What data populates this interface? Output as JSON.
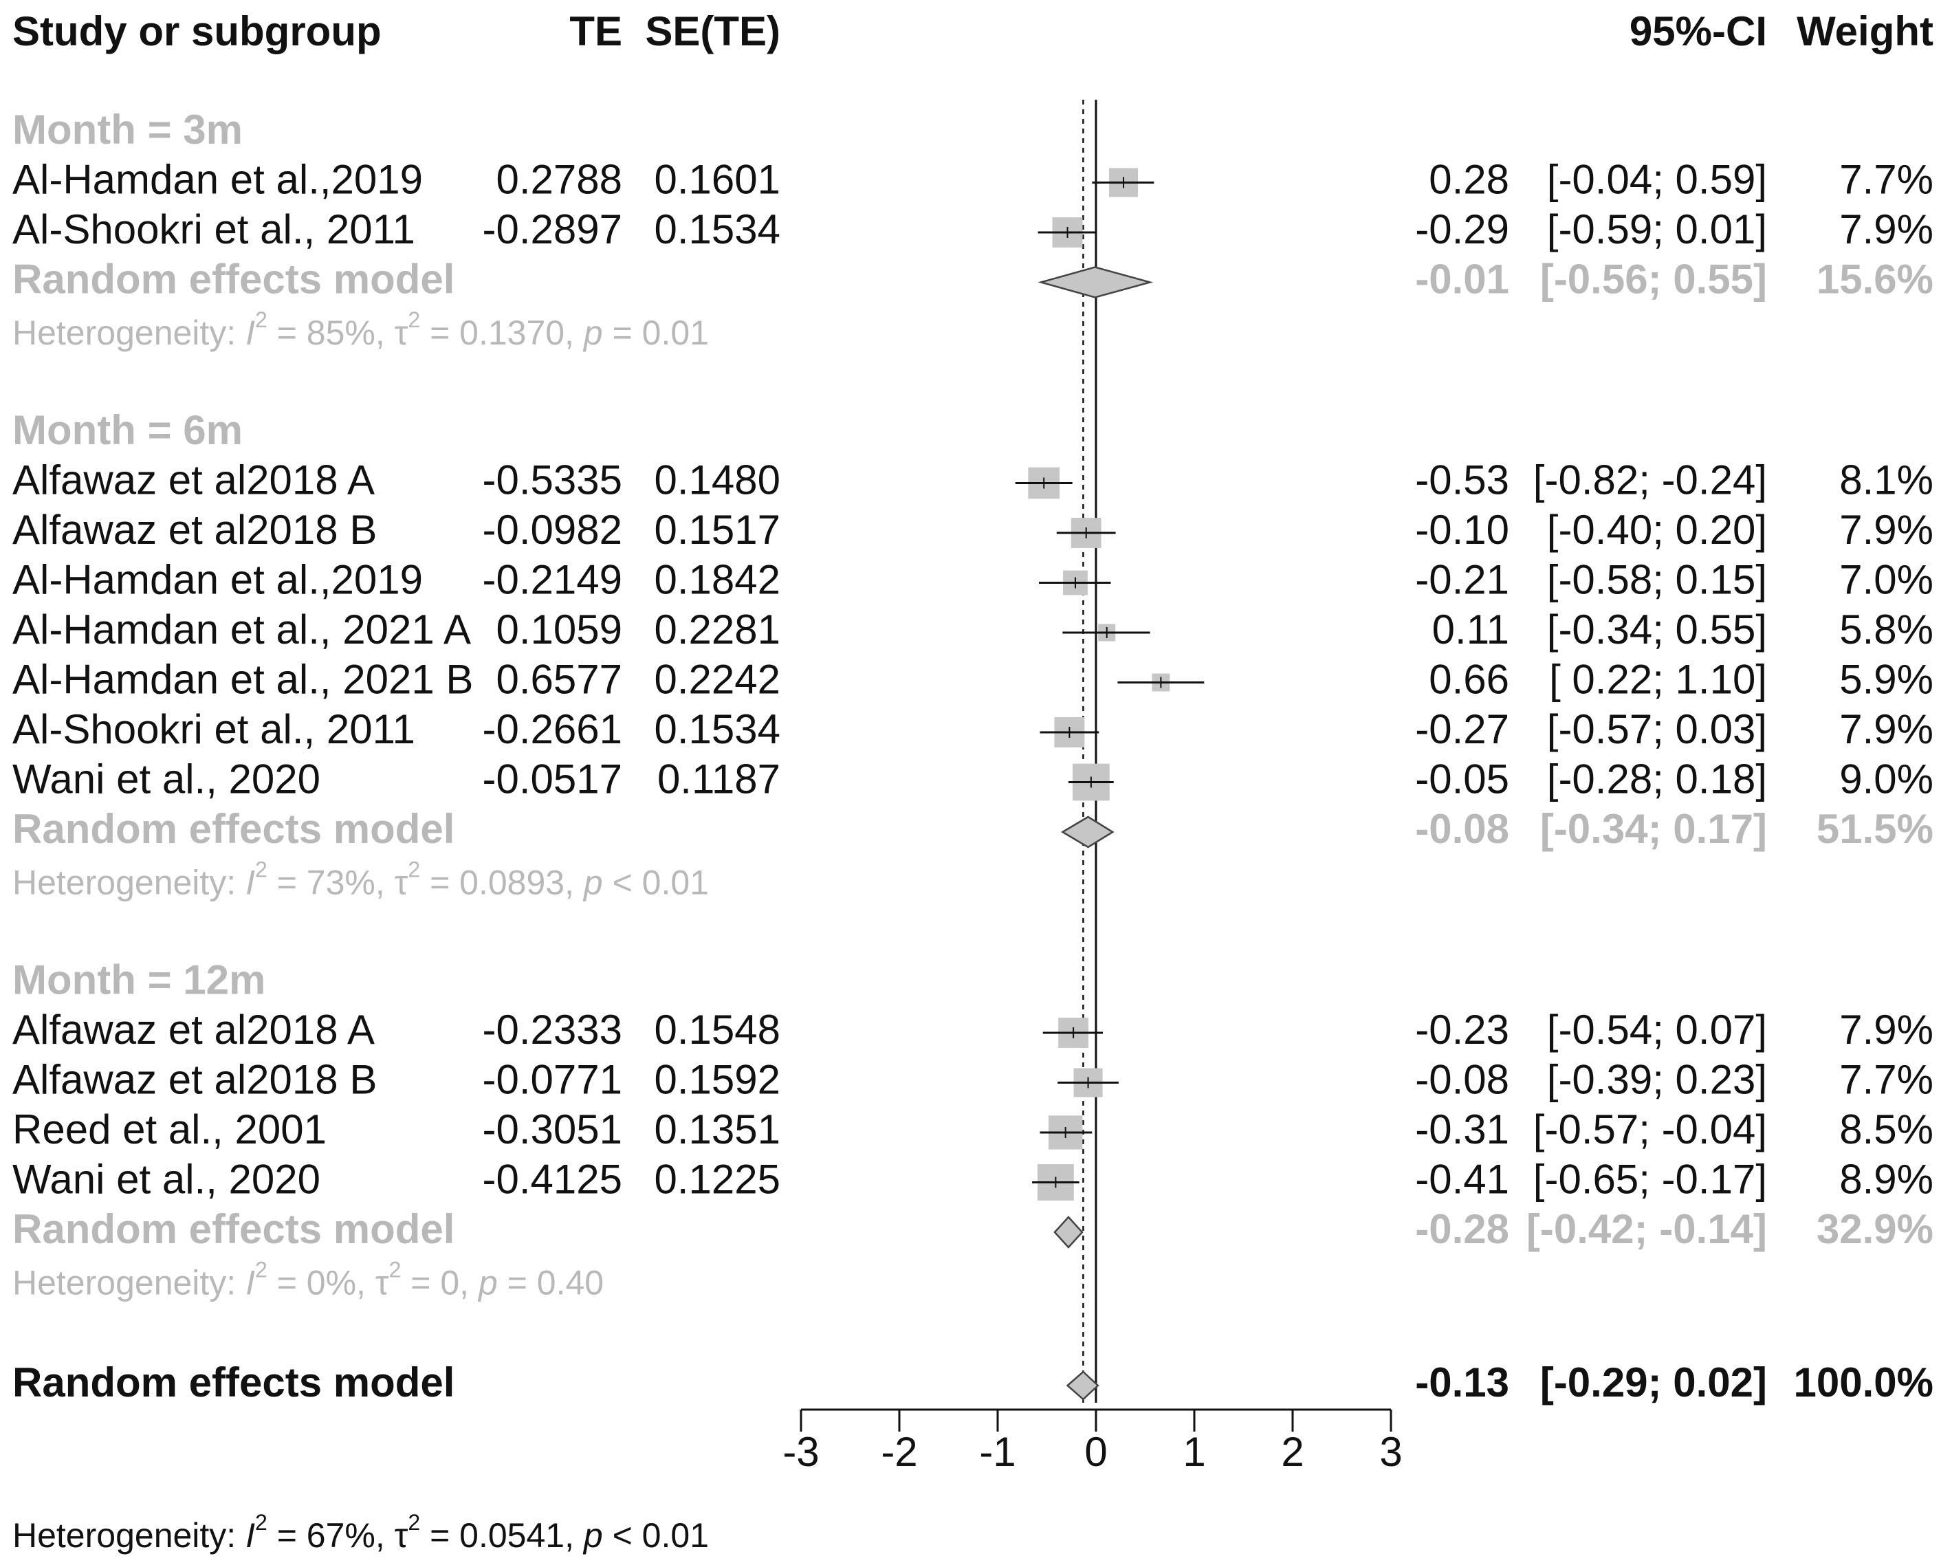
{
  "chart_data": {
    "type": "forest",
    "headers": {
      "study": "Study or subgroup",
      "te": "TE",
      "se": "SE(TE)",
      "ci": "95%-CI",
      "weight": "Weight"
    },
    "xlim": [
      -3,
      3
    ],
    "x_ticks": [
      "-3",
      "-2",
      "-1",
      "0",
      "1",
      "2",
      "3"
    ],
    "pooled_estimate": -0.13,
    "subgroups": [
      {
        "label": "Month = 3m",
        "studies": [
          {
            "name": "Al-Hamdan et al.,2019",
            "te": "0.2788",
            "se": "0.1601",
            "est": 0.28,
            "lo": -0.04,
            "hi": 0.59,
            "wval": 7.7,
            "estr": "0.28",
            "ci": "[-0.04;  0.59]",
            "weight": "7.7%"
          },
          {
            "name": "Al-Shookri et al., 2011",
            "te": "-0.2897",
            "se": "0.1534",
            "est": -0.29,
            "lo": -0.59,
            "hi": 0.01,
            "wval": 7.9,
            "estr": "-0.29",
            "ci": "[-0.59;  0.01]",
            "weight": "7.9%"
          }
        ],
        "model": {
          "label": "Random effects model",
          "est": -0.01,
          "lo": -0.56,
          "hi": 0.55,
          "estr": "-0.01",
          "ci": "[-0.56;  0.55]",
          "weight": "15.6%"
        },
        "het": {
          "prefix": "Heterogeneity: ",
          "i": "I",
          "i2": "2",
          "i2eq": " = 85%, τ",
          "t2": "2",
          "t2eq": " = 0.1370, ",
          "p": "p",
          "peq": " = 0.01"
        }
      },
      {
        "label": "Month = 6m",
        "studies": [
          {
            "name": "Alfawaz et al2018 A",
            "te": "-0.5335",
            "se": "0.1480",
            "est": -0.53,
            "lo": -0.82,
            "hi": -0.24,
            "wval": 8.1,
            "estr": "-0.53",
            "ci": "[-0.82; -0.24]",
            "weight": "8.1%"
          },
          {
            "name": "Alfawaz et al2018 B",
            "te": "-0.0982",
            "se": "0.1517",
            "est": -0.1,
            "lo": -0.4,
            "hi": 0.2,
            "wval": 7.9,
            "estr": "-0.10",
            "ci": "[-0.40;  0.20]",
            "weight": "7.9%"
          },
          {
            "name": "Al-Hamdan et al.,2019",
            "te": "-0.2149",
            "se": "0.1842",
            "est": -0.21,
            "lo": -0.58,
            "hi": 0.15,
            "wval": 7.0,
            "estr": "-0.21",
            "ci": "[-0.58;  0.15]",
            "weight": "7.0%"
          },
          {
            "name": "Al-Hamdan et al., 2021 A",
            "te": "0.1059",
            "se": "0.2281",
            "est": 0.11,
            "lo": -0.34,
            "hi": 0.55,
            "wval": 5.8,
            "estr": "0.11",
            "ci": "[-0.34;  0.55]",
            "weight": "5.8%"
          },
          {
            "name": "Al-Hamdan et al., 2021 B",
            "te": "0.6577",
            "se": "0.2242",
            "est": 0.66,
            "lo": 0.22,
            "hi": 1.1,
            "wval": 5.9,
            "estr": "0.66",
            "ci": "[ 0.22;  1.10]",
            "weight": "5.9%"
          },
          {
            "name": "Al-Shookri et al., 2011",
            "te": "-0.2661",
            "se": "0.1534",
            "est": -0.27,
            "lo": -0.57,
            "hi": 0.03,
            "wval": 7.9,
            "estr": "-0.27",
            "ci": "[-0.57;  0.03]",
            "weight": "7.9%"
          },
          {
            "name": "Wani et al., 2020",
            "te": "-0.0517",
            "se": "0.1187",
            "est": -0.05,
            "lo": -0.28,
            "hi": 0.18,
            "wval": 9.0,
            "estr": "-0.05",
            "ci": "[-0.28;  0.18]",
            "weight": "9.0%"
          }
        ],
        "model": {
          "label": "Random effects model",
          "est": -0.08,
          "lo": -0.34,
          "hi": 0.17,
          "estr": "-0.08",
          "ci": "[-0.34;  0.17]",
          "weight": "51.5%"
        },
        "het": {
          "prefix": "Heterogeneity: ",
          "i": "I",
          "i2": "2",
          "i2eq": " = 73%, τ",
          "t2": "2",
          "t2eq": " = 0.0893, ",
          "p": "p",
          "peq": " < 0.01"
        }
      },
      {
        "label": "Month = 12m",
        "studies": [
          {
            "name": "Alfawaz et al2018 A",
            "te": "-0.2333",
            "se": "0.1548",
            "est": -0.23,
            "lo": -0.54,
            "hi": 0.07,
            "wval": 7.9,
            "estr": "-0.23",
            "ci": "[-0.54;  0.07]",
            "weight": "7.9%"
          },
          {
            "name": "Alfawaz et al2018 B",
            "te": "-0.0771",
            "se": "0.1592",
            "est": -0.08,
            "lo": -0.39,
            "hi": 0.23,
            "wval": 7.7,
            "estr": "-0.08",
            "ci": "[-0.39;  0.23]",
            "weight": "7.7%"
          },
          {
            "name": "Reed et al., 2001",
            "te": "-0.3051",
            "se": "0.1351",
            "est": -0.31,
            "lo": -0.57,
            "hi": -0.04,
            "wval": 8.5,
            "estr": "-0.31",
            "ci": "[-0.57; -0.04]",
            "weight": "8.5%"
          },
          {
            "name": "Wani et al., 2020",
            "te": "-0.4125",
            "se": "0.1225",
            "est": -0.41,
            "lo": -0.65,
            "hi": -0.17,
            "wval": 8.9,
            "estr": "-0.41",
            "ci": "[-0.65; -0.17]",
            "weight": "8.9%"
          }
        ],
        "model": {
          "label": "Random effects model",
          "est": -0.28,
          "lo": -0.42,
          "hi": -0.14,
          "estr": "-0.28",
          "ci": "[-0.42; -0.14]",
          "weight": "32.9%"
        },
        "het": {
          "prefix": "Heterogeneity: ",
          "i": "I",
          "i2": "2",
          "i2eq": " = 0%, τ",
          "t2": "2",
          "t2eq": " = 0, ",
          "p": "p",
          "peq": " = 0.40"
        }
      }
    ],
    "overall": {
      "label": "Random effects model",
      "est": -0.13,
      "lo": -0.29,
      "hi": 0.02,
      "estr": "-0.13",
      "ci": "[-0.29;  0.02]",
      "weight": "100.0%"
    },
    "overall_het": {
      "prefix": "Heterogeneity: ",
      "i": "I",
      "i2": "2",
      "i2eq": " = 67%, τ",
      "t2": "2",
      "t2eq": " = 0.0541, ",
      "p": "p",
      "peq": " < 0.01"
    },
    "colors": {
      "box": "#c6c6c6",
      "diamond": "#c6c6c6",
      "grey_text": "#b8b8b8",
      "ink": "#111111"
    }
  }
}
